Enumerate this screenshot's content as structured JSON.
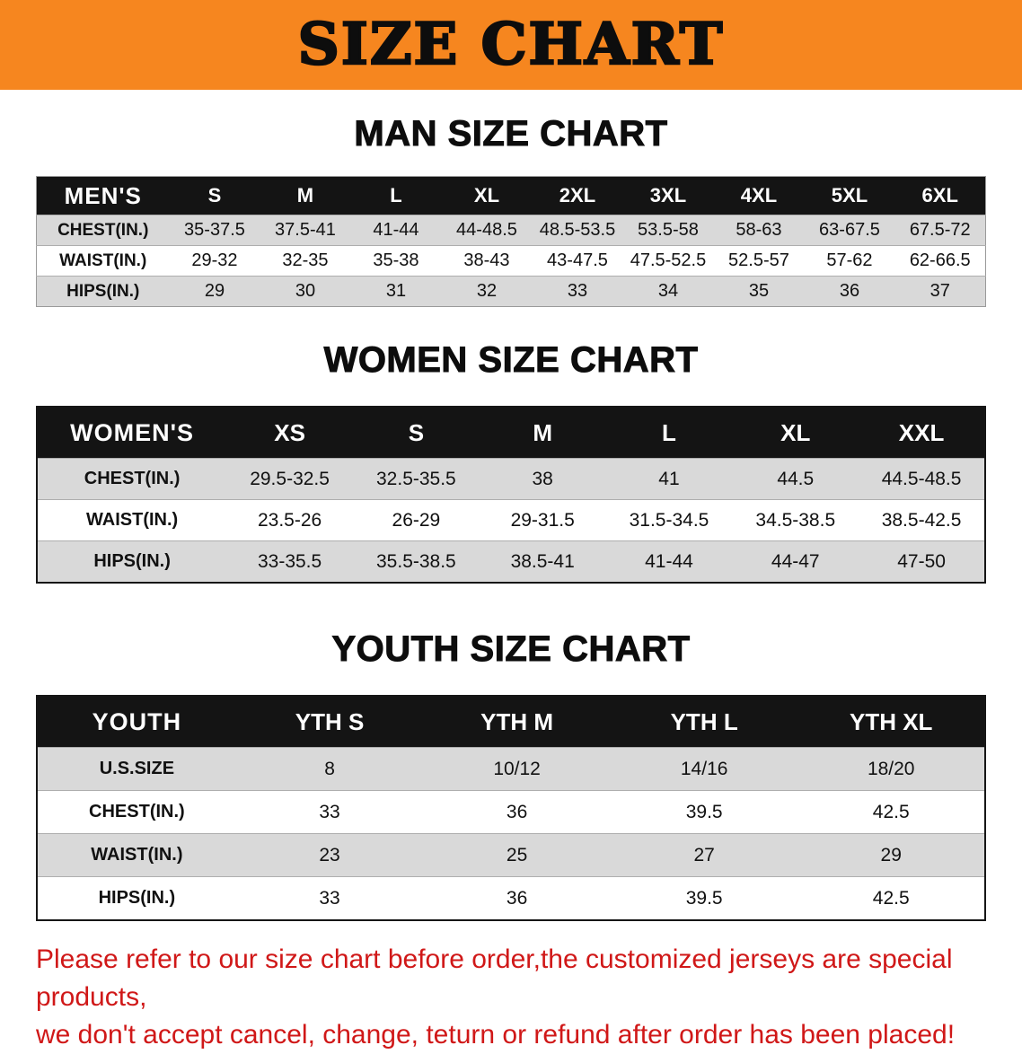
{
  "banner": {
    "title": "SIZE CHART"
  },
  "sections": [
    {
      "id": "men",
      "heading": "MAN SIZE CHART",
      "table": {
        "title": "MEN'S",
        "sizes": [
          "S",
          "M",
          "L",
          "XL",
          "2XL",
          "3XL",
          "4XL",
          "5XL",
          "6XL"
        ],
        "rows": [
          {
            "label": "CHEST(IN.)",
            "values": [
              "35-37.5",
              "37.5-41",
              "41-44",
              "44-48.5",
              "48.5-53.5",
              "53.5-58",
              "58-63",
              "63-67.5",
              "67.5-72"
            ]
          },
          {
            "label": "WAIST(IN.)",
            "values": [
              "29-32",
              "32-35",
              "35-38",
              "38-43",
              "43-47.5",
              "47.5-52.5",
              "52.5-57",
              "57-62",
              "62-66.5"
            ]
          },
          {
            "label": "HIPS(IN.)",
            "values": [
              "29",
              "30",
              "31",
              "32",
              "33",
              "34",
              "35",
              "36",
              "37"
            ]
          }
        ]
      }
    },
    {
      "id": "women",
      "heading": "WOMEN SIZE CHART",
      "table": {
        "title": "WOMEN'S",
        "sizes": [
          "XS",
          "S",
          "M",
          "L",
          "XL",
          "XXL"
        ],
        "rows": [
          {
            "label": "CHEST(IN.)",
            "values": [
              "29.5-32.5",
              "32.5-35.5",
              "38",
              "41",
              "44.5",
              "44.5-48.5"
            ]
          },
          {
            "label": "WAIST(IN.)",
            "values": [
              "23.5-26",
              "26-29",
              "29-31.5",
              "31.5-34.5",
              "34.5-38.5",
              "38.5-42.5"
            ]
          },
          {
            "label": "HIPS(IN.)",
            "values": [
              "33-35.5",
              "35.5-38.5",
              "38.5-41",
              "41-44",
              "44-47",
              "47-50"
            ]
          }
        ]
      }
    },
    {
      "id": "youth",
      "heading": "YOUTH SIZE CHART",
      "table": {
        "title": "YOUTH",
        "sizes": [
          "YTH S",
          "YTH M",
          "YTH L",
          "YTH XL"
        ],
        "rows": [
          {
            "label": "U.S.SIZE",
            "values": [
              "8",
              "10/12",
              "14/16",
              "18/20"
            ]
          },
          {
            "label": "CHEST(IN.)",
            "values": [
              "33",
              "36",
              "39.5",
              "42.5"
            ]
          },
          {
            "label": "WAIST(IN.)",
            "values": [
              "23",
              "25",
              "27",
              "29"
            ]
          },
          {
            "label": "HIPS(IN.)",
            "values": [
              "33",
              "36",
              "39.5",
              "42.5"
            ]
          }
        ]
      }
    }
  ],
  "footer": {
    "line1": "Please refer to our size chart before order,the customized jerseys are special products,",
    "line2": "we don't accept cancel, change, teturn or refund after order has been placed!"
  },
  "colors": {
    "banner_bg": "#f6861f",
    "header_bg": "#141414",
    "stripe_bg": "#d9d9d9",
    "footer_text": "#d01818"
  }
}
